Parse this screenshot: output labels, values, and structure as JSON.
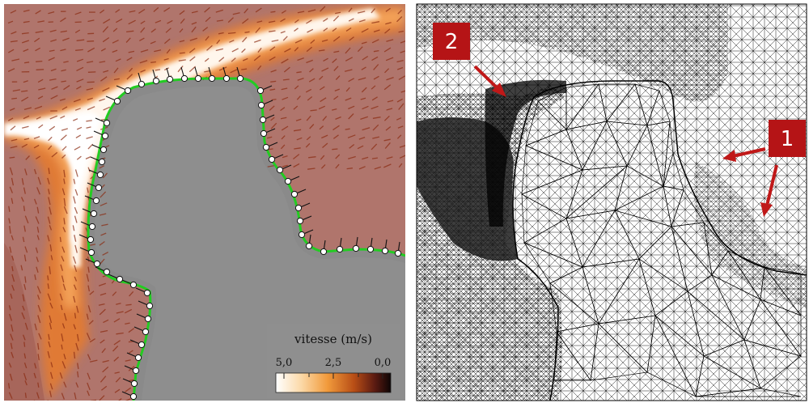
{
  "left_panel": {
    "colorbar": {
      "label": "vitesse (m/s)",
      "ticks": [
        "5,0",
        "2,5",
        "0,0"
      ],
      "range": [
        5.0,
        0.0
      ]
    },
    "colors": {
      "solid": "#8a8a8a",
      "interface_line": "#22cc22",
      "marker_fill": "#ffffff",
      "jet_core": "#ffffff",
      "jet_mid": "#f3a64a",
      "jet_low": "#b0502a",
      "background_flow": "#a86a62"
    }
  },
  "right_panel": {
    "callouts": [
      {
        "label": "2"
      },
      {
        "label": "1"
      }
    ],
    "colors": {
      "callout_bg": "#b51416",
      "arrow": "#c01818",
      "mesh": "#000000",
      "background": "#ffffff"
    }
  }
}
